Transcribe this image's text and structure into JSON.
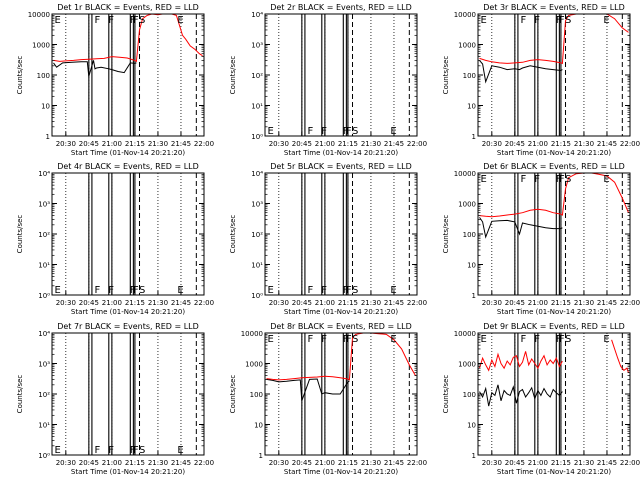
{
  "figure": {
    "colors": {
      "events": "#000000",
      "lld": "#ff0000",
      "axes": "#000000",
      "background": "#ffffff"
    },
    "xlabel": "Start Time (01-Nov-14 20:21:20)",
    "ylabel": "Counts/sec"
  },
  "chart_data": [
    {
      "id": "det1",
      "type": "line",
      "title": "Det 1r BLACK = Events, RED = LLD",
      "yscale": "log",
      "ylim": [
        1,
        10000
      ],
      "ytick_format": "plain",
      "xticks": [
        "20:30",
        "20:45",
        "21:00",
        "21:15",
        "21:30",
        "21:45",
        "22:00"
      ],
      "xlabel": "Start Time (01-Nov-14 20:21:20)",
      "ylabel": "Counts/sec",
      "markers": [
        "E",
        "F",
        "F",
        "F",
        "F",
        "S",
        "E"
      ],
      "series": [
        {
          "name": "Events",
          "x": [
            "20:22",
            "20:24",
            "20:28",
            "20:34",
            "20:40",
            "20:44",
            "20:45",
            "20:48",
            "20:49",
            "20:50",
            "20:53",
            "20:58",
            "21:00",
            "21:04",
            "21:08",
            "21:12",
            "21:15",
            "21:16"
          ],
          "y": [
            250,
            180,
            250,
            260,
            270,
            270,
            90,
            300,
            160,
            170,
            180,
            160,
            150,
            130,
            120,
            250,
            240,
            250
          ]
        },
        {
          "name": "LLD",
          "x": [
            "20:22",
            "20:26",
            "20:30",
            "20:35",
            "20:40",
            "20:45",
            "20:50",
            "20:55",
            "21:00",
            "21:05",
            "21:10",
            "21:15",
            "21:16",
            "21:18",
            "21:20",
            "21:23",
            "21:26",
            "21:30",
            "21:33",
            "21:36",
            "21:39",
            "21:42",
            "21:46",
            "21:48",
            "21:51",
            "21:54",
            "21:57",
            "21:59"
          ],
          "y": [
            300,
            280,
            290,
            300,
            320,
            330,
            340,
            350,
            400,
            380,
            360,
            300,
            280,
            3000,
            7000,
            9000,
            10000,
            9500,
            10000,
            10000,
            10000,
            9000,
            2000,
            1500,
            900,
            700,
            500,
            430
          ]
        }
      ]
    },
    {
      "id": "det2",
      "type": "line",
      "title": "Det 2r BLACK = Events, RED = LLD",
      "yscale": "log",
      "ylim": [
        1,
        10000
      ],
      "ytick_format": "exp",
      "xticks": [
        "20:30",
        "20:45",
        "21:00",
        "21:15",
        "21:30",
        "21:45",
        "22:00"
      ],
      "xlabel": "Start Time (01-Nov-14 20:21:20)",
      "ylabel": "Counts/sec",
      "markers": [
        "E",
        "F",
        "F",
        "F",
        "F",
        "S",
        "E"
      ],
      "series": []
    },
    {
      "id": "det3",
      "type": "line",
      "title": "Det 3r BLACK = Events, RED = LLD",
      "yscale": "log",
      "ylim": [
        1,
        10000
      ],
      "ytick_format": "plain",
      "xticks": [
        "20:30",
        "20:45",
        "21:00",
        "21:15",
        "21:30",
        "21:45",
        "22:00"
      ],
      "xlabel": "Start Time (01-Nov-14 20:21:20)",
      "ylabel": "Counts/sec",
      "markers": [
        "E",
        "F",
        "F",
        "F",
        "F",
        "S",
        "E"
      ],
      "series": [
        {
          "name": "Events",
          "x": [
            "20:22",
            "20:24",
            "20:26",
            "20:30",
            "20:35",
            "20:40",
            "20:45",
            "20:48",
            "20:50",
            "20:55",
            "21:00",
            "21:05",
            "21:10",
            "21:15",
            "21:16"
          ],
          "y": [
            300,
            230,
            60,
            200,
            180,
            150,
            160,
            150,
            170,
            200,
            180,
            160,
            150,
            140,
            150
          ]
        },
        {
          "name": "LLD",
          "x": [
            "20:22",
            "20:26",
            "20:30",
            "20:35",
            "20:40",
            "20:45",
            "20:50",
            "20:55",
            "21:00",
            "21:05",
            "21:10",
            "21:15",
            "21:16",
            "21:18",
            "21:20",
            "21:25",
            "21:30",
            "21:35",
            "21:40",
            "21:45",
            "21:50",
            "21:55",
            "21:59"
          ],
          "y": [
            350,
            300,
            270,
            250,
            240,
            250,
            260,
            300,
            320,
            300,
            280,
            250,
            240,
            6000,
            9000,
            10000,
            10000,
            10000,
            10000,
            10000,
            7000,
            3500,
            2500
          ]
        }
      ]
    },
    {
      "id": "det4",
      "type": "line",
      "title": "Det 4r BLACK = Events, RED = LLD",
      "yscale": "log",
      "ylim": [
        1,
        10000
      ],
      "ytick_format": "exp",
      "xticks": [
        "20:30",
        "20:45",
        "21:00",
        "21:15",
        "21:30",
        "21:45",
        "22:00"
      ],
      "xlabel": "Start Time (01-Nov-14 20:21:20)",
      "ylabel": "Counts/sec",
      "markers": [
        "E",
        "F",
        "F",
        "F",
        "F",
        "S",
        "E"
      ],
      "series": []
    },
    {
      "id": "det5",
      "type": "line",
      "title": "Det 5r BLACK = Events, RED = LLD",
      "yscale": "log",
      "ylim": [
        1,
        10000
      ],
      "ytick_format": "exp",
      "xticks": [
        "20:30",
        "20:45",
        "21:00",
        "21:15",
        "21:30",
        "21:45",
        "22:00"
      ],
      "xlabel": "Start Time (01-Nov-14 20:21:20)",
      "ylabel": "Counts/sec",
      "markers": [
        "E",
        "F",
        "F",
        "F",
        "F",
        "S",
        "E"
      ],
      "series": []
    },
    {
      "id": "det6",
      "type": "line",
      "title": "Det 6r BLACK = Events, RED = LLD",
      "yscale": "log",
      "ylim": [
        1,
        10000
      ],
      "ytick_format": "plain",
      "xticks": [
        "20:30",
        "20:45",
        "21:00",
        "21:15",
        "21:30",
        "21:45",
        "22:00"
      ],
      "xlabel": "Start Time (01-Nov-14 20:21:20)",
      "ylabel": "Counts/sec",
      "markers": [
        "E",
        "F",
        "F",
        "F",
        "F",
        "S",
        "E"
      ],
      "series": [
        {
          "name": "Events",
          "x": [
            "20:22",
            "20:24",
            "20:26",
            "20:30",
            "20:35",
            "20:40",
            "20:45",
            "20:48",
            "20:50",
            "20:55",
            "21:00",
            "21:05",
            "21:10",
            "21:15",
            "21:16"
          ],
          "y": [
            350,
            250,
            80,
            260,
            270,
            280,
            250,
            100,
            230,
            200,
            180,
            160,
            150,
            150,
            160
          ]
        },
        {
          "name": "LLD",
          "x": [
            "20:22",
            "20:26",
            "20:30",
            "20:35",
            "20:40",
            "20:45",
            "20:50",
            "20:55",
            "21:00",
            "21:05",
            "21:10",
            "21:15",
            "21:16",
            "21:18",
            "21:20",
            "21:25",
            "21:30",
            "21:35",
            "21:40",
            "21:45",
            "21:50",
            "21:55",
            "21:59"
          ],
          "y": [
            400,
            380,
            370,
            390,
            420,
            450,
            500,
            600,
            650,
            600,
            500,
            450,
            420,
            3000,
            7000,
            9500,
            10000,
            10000,
            9000,
            8000,
            5000,
            1500,
            500
          ]
        }
      ]
    },
    {
      "id": "det7",
      "type": "line",
      "title": "Det 7r BLACK = Events, RED = LLD",
      "yscale": "log",
      "ylim": [
        1,
        10000
      ],
      "ytick_format": "exp",
      "xticks": [
        "20:30",
        "20:45",
        "21:00",
        "21:15",
        "21:30",
        "21:45",
        "22:00"
      ],
      "xlabel": "Start Time (01-Nov-14 20:21:20)",
      "ylabel": "Counts/sec",
      "markers": [
        "E",
        "F",
        "F",
        "F",
        "F",
        "S",
        "E"
      ],
      "series": []
    },
    {
      "id": "det8",
      "type": "line",
      "title": "Det 8r BLACK = Events, RED = LLD",
      "yscale": "log",
      "ylim": [
        1,
        10000
      ],
      "ytick_format": "plain",
      "xticks": [
        "20:30",
        "20:45",
        "21:00",
        "21:15",
        "21:30",
        "21:45",
        "22:00"
      ],
      "xlabel": "Start Time (01-Nov-14 20:21:20)",
      "ylabel": "Counts/sec",
      "markers": [
        "E",
        "F",
        "F",
        "F",
        "F",
        "S",
        "E"
      ],
      "series": [
        {
          "name": "Events",
          "x": [
            "20:22",
            "20:26",
            "20:30",
            "20:35",
            "20:40",
            "20:44",
            "20:45",
            "20:50",
            "20:55",
            "20:58",
            "21:00",
            "21:05",
            "21:10",
            "21:15",
            "21:16"
          ],
          "y": [
            300,
            280,
            250,
            260,
            280,
            290,
            60,
            300,
            310,
            100,
            110,
            100,
            100,
            250,
            260
          ]
        },
        {
          "name": "LLD",
          "x": [
            "20:22",
            "20:26",
            "20:30",
            "20:35",
            "20:40",
            "20:45",
            "20:50",
            "20:55",
            "21:00",
            "21:05",
            "21:10",
            "21:15",
            "21:16",
            "21:18",
            "21:20",
            "21:25",
            "21:30",
            "21:35",
            "21:40",
            "21:45",
            "21:50",
            "21:55",
            "21:59"
          ],
          "y": [
            320,
            300,
            290,
            300,
            320,
            340,
            350,
            360,
            380,
            370,
            340,
            310,
            290,
            7000,
            9000,
            10000,
            10000,
            9500,
            9000,
            6000,
            3000,
            900,
            400
          ]
        }
      ]
    },
    {
      "id": "det9",
      "type": "line",
      "title": "Det 9r BLACK = Events, RED = LLD",
      "yscale": "log",
      "ylim": [
        1,
        10000
      ],
      "ytick_format": "plain",
      "xticks": [
        "20:30",
        "20:45",
        "21:00",
        "21:15",
        "21:30",
        "21:45",
        "22:00"
      ],
      "xlabel": "Start Time (01-Nov-14 20:21:20)",
      "ylabel": "Counts/sec",
      "markers": [
        "E",
        "F",
        "F",
        "F",
        "F",
        "S",
        "E"
      ],
      "series": [
        {
          "name": "Events",
          "x": [
            "20:22",
            "20:24",
            "20:26",
            "20:28",
            "20:30",
            "20:32",
            "20:34",
            "20:36",
            "20:38",
            "20:40",
            "20:42",
            "20:44",
            "20:46",
            "20:48",
            "20:50",
            "20:52",
            "20:54",
            "20:56",
            "20:58",
            "21:00",
            "21:02",
            "21:04",
            "21:06",
            "21:08",
            "21:10",
            "21:12",
            "21:14",
            "21:16"
          ],
          "y": [
            120,
            80,
            150,
            40,
            110,
            90,
            200,
            60,
            130,
            100,
            90,
            170,
            50,
            120,
            140,
            80,
            110,
            160,
            70,
            130,
            90,
            150,
            100,
            80,
            140,
            110,
            90,
            120
          ]
        },
        {
          "name": "LLD",
          "x": [
            "20:22",
            "20:24",
            "20:26",
            "20:28",
            "20:30",
            "20:32",
            "20:34",
            "20:36",
            "20:38",
            "20:40",
            "20:42",
            "20:44",
            "20:46",
            "20:48",
            "20:50",
            "20:52",
            "20:54",
            "20:56",
            "20:58",
            "21:00",
            "21:02",
            "21:04",
            "21:06",
            "21:08",
            "21:10",
            "21:12",
            "21:14",
            "21:16",
            "21:18",
            "21:20",
            "21:22",
            "21:24",
            "21:26",
            "21:28",
            "21:30",
            "21:40",
            "21:45",
            "21:48",
            "21:50",
            "21:52",
            "21:54",
            "21:56",
            "21:58",
            "21:59"
          ],
          "y": [
            700,
            1500,
            900,
            600,
            1300,
            800,
            2000,
            1000,
            700,
            1200,
            900,
            1600,
            1800,
            800,
            1100,
            2500,
            900,
            1400,
            1000,
            700,
            1200,
            1800,
            900,
            1300,
            1000,
            1500,
            800,
            1200,
            null,
            null,
            null,
            null,
            null,
            null,
            null,
            null,
            null,
            6000,
            3000,
            1500,
            800,
            600,
            700,
            500
          ]
        }
      ]
    }
  ]
}
